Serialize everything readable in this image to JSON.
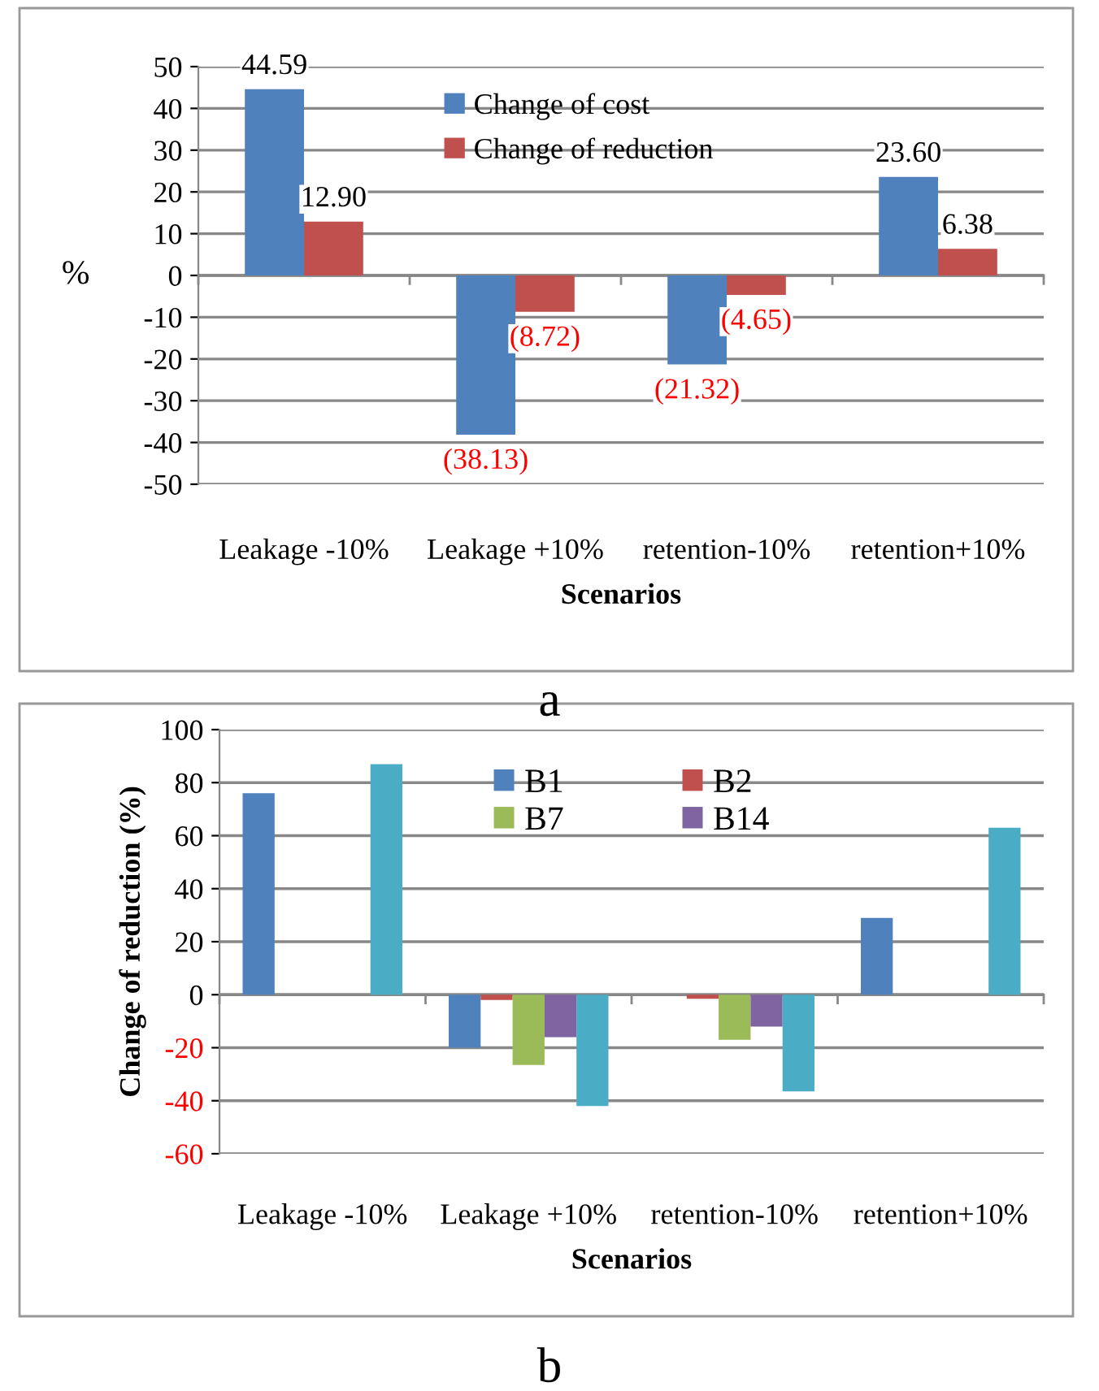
{
  "chart_data": [
    {
      "type": "bar",
      "categories": [
        "Leakage -10%",
        "Leakage +10%",
        "retention-10%",
        "retention+10%"
      ],
      "xlabel": "Scenarios",
      "ylabel": "%",
      "series": [
        {
          "name": "Change of cost",
          "color": "#4f81bd",
          "values": [
            44.59,
            -38.13,
            -21.32,
            23.6
          ],
          "value_labels": [
            "44.59",
            "(38.13)",
            "(21.32)",
            "23.60"
          ]
        },
        {
          "name": "Change of reduction",
          "color": "#c0504d",
          "values": [
            12.9,
            -8.72,
            -4.65,
            6.38
          ],
          "value_labels": [
            "12.90",
            "(8.72)",
            "(4.65)",
            "6.38"
          ]
        }
      ],
      "ylim": [
        -50,
        50
      ],
      "yticks": [
        -50,
        -40,
        -30,
        -20,
        -10,
        0,
        10,
        20,
        30,
        40,
        50
      ],
      "grid": "y",
      "legend": "top",
      "annotations": [
        "a"
      ]
    },
    {
      "type": "bar",
      "categories": [
        "Leakage -10%",
        "Leakage +10%",
        "retention-10%",
        "retention+10%"
      ],
      "xlabel": "Scenarios",
      "ylabel": "Change of reduction (%)",
      "series": [
        {
          "name": "B1",
          "color": "#4f81bd",
          "values": [
            76,
            -20,
            null,
            29
          ]
        },
        {
          "name": "B2",
          "color": "#c0504d",
          "values": [
            null,
            -2,
            -1.5,
            null
          ]
        },
        {
          "name": "B7",
          "color": "#9bbb59",
          "values": [
            null,
            -26.5,
            -17,
            null
          ]
        },
        {
          "name": "B14",
          "color": "#8064a2",
          "values": [
            null,
            -16,
            -12,
            null
          ]
        },
        {
          "color": "#4bacc6",
          "values": [
            87,
            -42,
            -36.5,
            63
          ]
        }
      ],
      "ylim": [
        -60,
        100
      ],
      "yticks": [
        -60,
        -40,
        -20,
        0,
        20,
        40,
        60,
        80,
        100
      ],
      "grid": "y",
      "legend": "top",
      "annotations": [
        "b"
      ]
    }
  ]
}
